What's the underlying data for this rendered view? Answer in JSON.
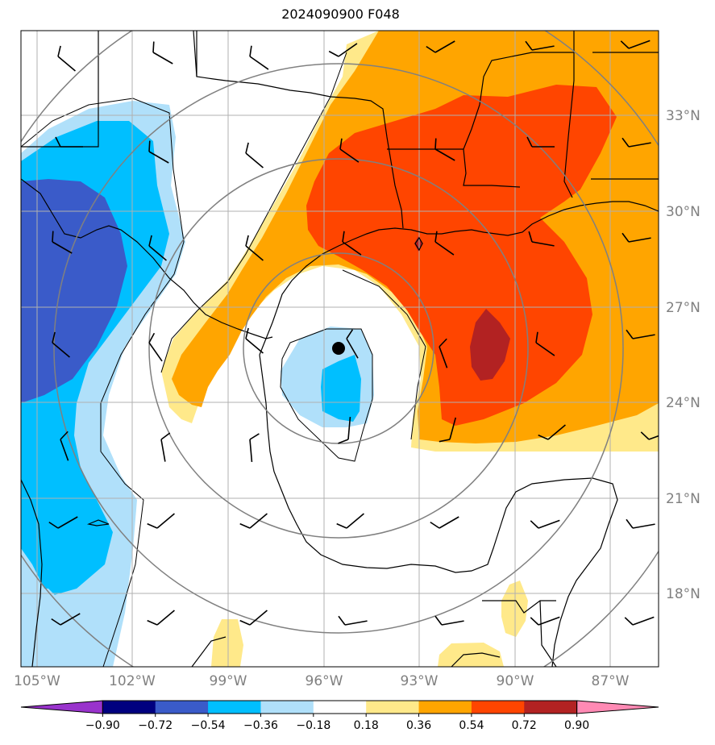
{
  "title": "2024090900 F048",
  "colors": {
    "bin_colors": [
      "#9933cc",
      "#00007f",
      "#3a5bc9",
      "#00bfff",
      "#b0e0fa",
      "#ffffff",
      "#ffe98a",
      "#ffa500",
      "#ff4500",
      "#b22222",
      "#ff8ab4"
    ],
    "grid": "#b0b0b0",
    "rings": "#808080",
    "coast": "#000000"
  },
  "map": {
    "lon_ticks": [
      "105°W",
      "102°W",
      "99°W",
      "96°W",
      "93°W",
      "90°W",
      "87°W"
    ],
    "lat_ticks": [
      "33°N",
      "30°N",
      "27°N",
      "24°N",
      "21°N",
      "18°N"
    ],
    "storm_center": {
      "lon": -95.8,
      "lat": 25.7
    },
    "range_rings_count": 4
  },
  "colorbar": {
    "tick_labels": [
      "−0.90",
      "−0.72",
      "−0.54",
      "−0.36",
      "−0.18",
      "0.18",
      "0.36",
      "0.54",
      "0.72",
      "0.90"
    ],
    "levels": [
      -0.9,
      -0.72,
      -0.54,
      -0.36,
      -0.18,
      0.18,
      0.36,
      0.54,
      0.72,
      0.9
    ],
    "extend": "both"
  }
}
